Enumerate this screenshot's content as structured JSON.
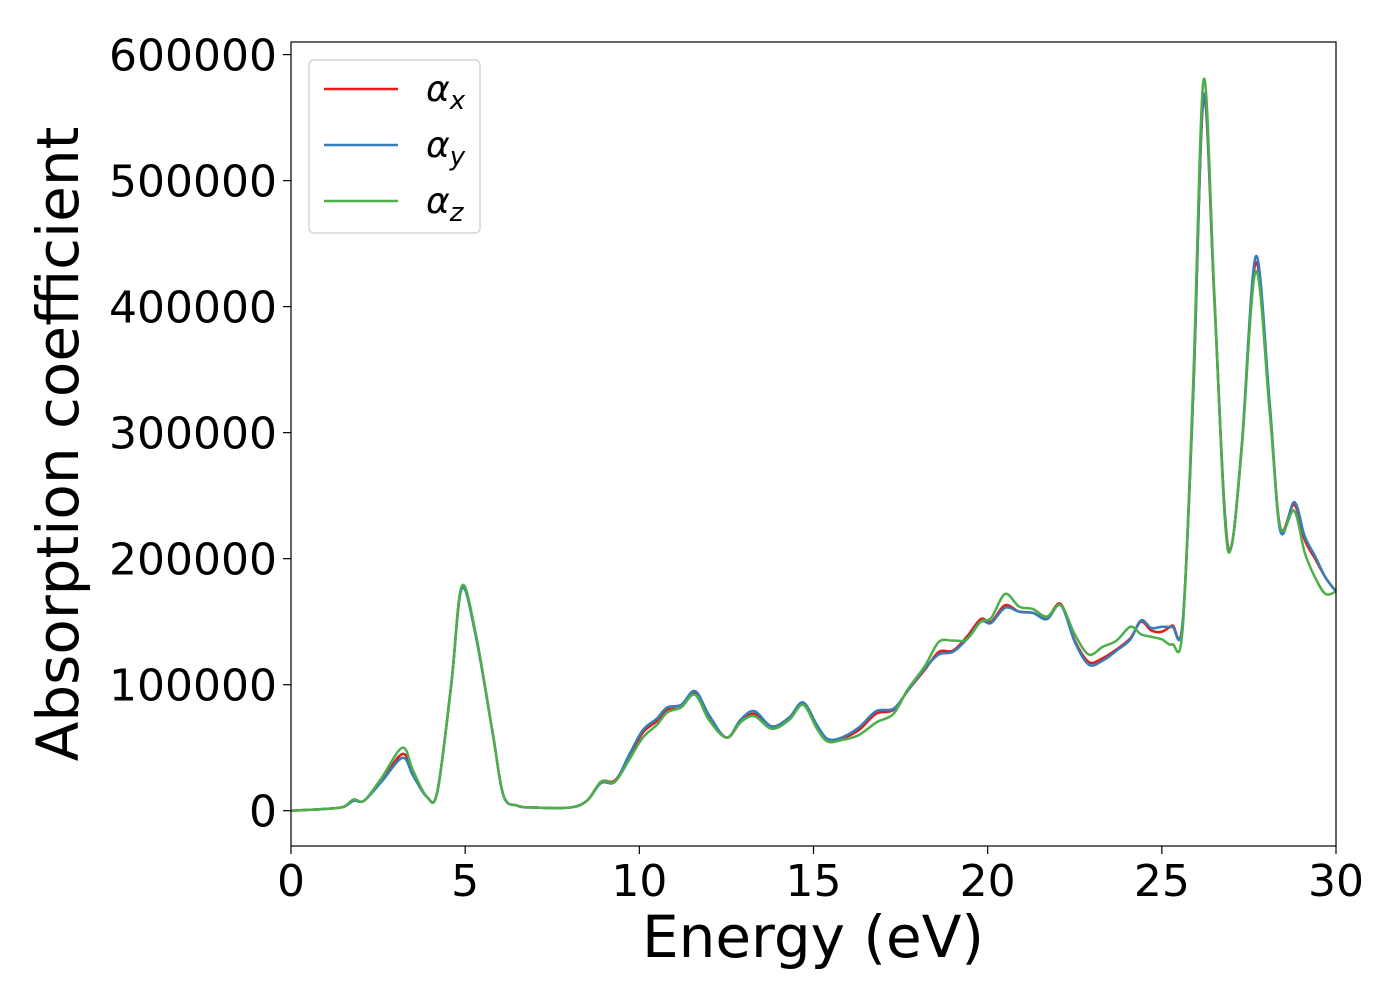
{
  "chart_data": {
    "type": "line",
    "xlabel": "Energy (eV)",
    "ylabel": "Absorption coefficient",
    "xlim": [
      0,
      30
    ],
    "ylim": [
      -28000,
      610000
    ],
    "x_ticks": [
      0,
      5,
      10,
      15,
      20,
      25,
      30
    ],
    "y_ticks": [
      0,
      100000,
      200000,
      300000,
      400000,
      500000,
      600000
    ],
    "grid": false,
    "legend_position": "top-left",
    "series": [
      {
        "name": "αx",
        "symbol": "α",
        "subscript": "x",
        "color": "#e41a1c",
        "points": [
          [
            0,
            0
          ],
          [
            1,
            1500
          ],
          [
            1.5,
            3000
          ],
          [
            1.8,
            8000
          ],
          [
            2.1,
            8000
          ],
          [
            2.6,
            24000
          ],
          [
            3.2,
            45000
          ],
          [
            3.5,
            30000
          ],
          [
            3.9,
            11000
          ],
          [
            4.2,
            15000
          ],
          [
            4.6,
            100000
          ],
          [
            4.9,
            177000
          ],
          [
            5.3,
            140000
          ],
          [
            5.8,
            60000
          ],
          [
            6.1,
            12000
          ],
          [
            6.5,
            4000
          ],
          [
            7,
            2500
          ],
          [
            8,
            2500
          ],
          [
            8.5,
            8000
          ],
          [
            8.9,
            23000
          ],
          [
            9.3,
            24000
          ],
          [
            9.7,
            42000
          ],
          [
            10.1,
            62000
          ],
          [
            10.5,
            71000
          ],
          [
            10.8,
            80000
          ],
          [
            11.2,
            82000
          ],
          [
            11.6,
            94000
          ],
          [
            12,
            75000
          ],
          [
            12.5,
            58000
          ],
          [
            12.9,
            70000
          ],
          [
            13.3,
            77000
          ],
          [
            13.8,
            66000
          ],
          [
            14.3,
            73000
          ],
          [
            14.7,
            85000
          ],
          [
            15.1,
            67000
          ],
          [
            15.4,
            55000
          ],
          [
            15.8,
            57000
          ],
          [
            16.3,
            64000
          ],
          [
            16.8,
            77000
          ],
          [
            17.3,
            80000
          ],
          [
            17.7,
            95000
          ],
          [
            18.2,
            112000
          ],
          [
            18.6,
            126000
          ],
          [
            19,
            127000
          ],
          [
            19.4,
            138000
          ],
          [
            19.8,
            152000
          ],
          [
            20.1,
            150000
          ],
          [
            20.5,
            163000
          ],
          [
            20.9,
            158000
          ],
          [
            21.3,
            157000
          ],
          [
            21.7,
            153000
          ],
          [
            22.1,
            164000
          ],
          [
            22.5,
            135000
          ],
          [
            22.9,
            118000
          ],
          [
            23.3,
            121000
          ],
          [
            23.7,
            128000
          ],
          [
            24.1,
            137000
          ],
          [
            24.4,
            150000
          ],
          [
            24.7,
            143000
          ],
          [
            25,
            142000
          ],
          [
            25.3,
            147000
          ],
          [
            25.6,
            150000
          ],
          [
            25.9,
            330000
          ],
          [
            26.2,
            565000
          ],
          [
            26.5,
            410000
          ],
          [
            26.8,
            240000
          ],
          [
            27,
            210000
          ],
          [
            27.3,
            290000
          ],
          [
            27.7,
            435000
          ],
          [
            28.1,
            320000
          ],
          [
            28.4,
            225000
          ],
          [
            28.8,
            243000
          ],
          [
            29.1,
            215000
          ],
          [
            29.4,
            200000
          ],
          [
            29.7,
            185000
          ],
          [
            30,
            174000
          ]
        ]
      },
      {
        "name": "αy",
        "symbol": "α",
        "subscript": "y",
        "color": "#377eb8",
        "points": [
          [
            0,
            0
          ],
          [
            1,
            1500
          ],
          [
            1.5,
            3000
          ],
          [
            1.8,
            8000
          ],
          [
            2.1,
            8000
          ],
          [
            2.6,
            23000
          ],
          [
            3.2,
            42000
          ],
          [
            3.5,
            28000
          ],
          [
            3.9,
            11000
          ],
          [
            4.2,
            15000
          ],
          [
            4.6,
            100000
          ],
          [
            4.9,
            176000
          ],
          [
            5.3,
            139000
          ],
          [
            5.8,
            60000
          ],
          [
            6.1,
            12000
          ],
          [
            6.5,
            4000
          ],
          [
            7,
            2500
          ],
          [
            8,
            2500
          ],
          [
            8.5,
            8000
          ],
          [
            8.9,
            22000
          ],
          [
            9.3,
            23000
          ],
          [
            9.7,
            44000
          ],
          [
            10.1,
            64000
          ],
          [
            10.5,
            73000
          ],
          [
            10.8,
            82000
          ],
          [
            11.2,
            84000
          ],
          [
            11.6,
            95000
          ],
          [
            12,
            76000
          ],
          [
            12.5,
            58000
          ],
          [
            12.9,
            72000
          ],
          [
            13.3,
            79000
          ],
          [
            13.8,
            67000
          ],
          [
            14.3,
            74000
          ],
          [
            14.7,
            86000
          ],
          [
            15.1,
            68000
          ],
          [
            15.4,
            57000
          ],
          [
            15.8,
            58000
          ],
          [
            16.3,
            66000
          ],
          [
            16.8,
            79000
          ],
          [
            17.3,
            81000
          ],
          [
            17.7,
            95000
          ],
          [
            18.2,
            113000
          ],
          [
            18.6,
            124000
          ],
          [
            19,
            126000
          ],
          [
            19.4,
            136000
          ],
          [
            19.8,
            150000
          ],
          [
            20.1,
            149000
          ],
          [
            20.5,
            161000
          ],
          [
            20.9,
            158000
          ],
          [
            21.3,
            157000
          ],
          [
            21.7,
            152000
          ],
          [
            22.1,
            163000
          ],
          [
            22.5,
            134000
          ],
          [
            22.9,
            116000
          ],
          [
            23.3,
            119000
          ],
          [
            23.7,
            127000
          ],
          [
            24.1,
            136000
          ],
          [
            24.4,
            151000
          ],
          [
            24.7,
            145000
          ],
          [
            25,
            146000
          ],
          [
            25.3,
            146000
          ],
          [
            25.6,
            150000
          ],
          [
            25.9,
            330000
          ],
          [
            26.2,
            568000
          ],
          [
            26.5,
            412000
          ],
          [
            26.8,
            238000
          ],
          [
            27,
            210000
          ],
          [
            27.3,
            292000
          ],
          [
            27.7,
            440000
          ],
          [
            28.1,
            322000
          ],
          [
            28.4,
            222000
          ],
          [
            28.8,
            245000
          ],
          [
            29.1,
            218000
          ],
          [
            29.4,
            202000
          ],
          [
            29.7,
            185000
          ],
          [
            30,
            174000
          ]
        ]
      },
      {
        "name": "αz",
        "symbol": "α",
        "subscript": "z",
        "color": "#4daf4a",
        "points": [
          [
            0,
            0
          ],
          [
            1,
            1500
          ],
          [
            1.5,
            3000
          ],
          [
            1.8,
            9000
          ],
          [
            2.1,
            8000
          ],
          [
            2.6,
            26000
          ],
          [
            3.2,
            50000
          ],
          [
            3.5,
            32000
          ],
          [
            3.9,
            11000
          ],
          [
            4.2,
            15000
          ],
          [
            4.6,
            100000
          ],
          [
            4.9,
            178000
          ],
          [
            5.3,
            141000
          ],
          [
            5.8,
            60000
          ],
          [
            6.1,
            12000
          ],
          [
            6.5,
            4000
          ],
          [
            7,
            2500
          ],
          [
            8,
            2500
          ],
          [
            8.5,
            8000
          ],
          [
            8.9,
            23000
          ],
          [
            9.3,
            23000
          ],
          [
            9.7,
            40000
          ],
          [
            10.1,
            58000
          ],
          [
            10.5,
            68000
          ],
          [
            10.8,
            78000
          ],
          [
            11.2,
            82000
          ],
          [
            11.6,
            92000
          ],
          [
            12,
            72000
          ],
          [
            12.5,
            58000
          ],
          [
            12.9,
            70000
          ],
          [
            13.3,
            75000
          ],
          [
            13.8,
            65000
          ],
          [
            14.3,
            72000
          ],
          [
            14.7,
            84000
          ],
          [
            15.1,
            65000
          ],
          [
            15.4,
            55000
          ],
          [
            15.8,
            56000
          ],
          [
            16.3,
            60000
          ],
          [
            16.8,
            70000
          ],
          [
            17.3,
            77000
          ],
          [
            17.7,
            96000
          ],
          [
            18.2,
            115000
          ],
          [
            18.6,
            134000
          ],
          [
            19,
            135000
          ],
          [
            19.4,
            136000
          ],
          [
            19.8,
            150000
          ],
          [
            20.1,
            153000
          ],
          [
            20.5,
            172000
          ],
          [
            20.9,
            162000
          ],
          [
            21.3,
            160000
          ],
          [
            21.7,
            154000
          ],
          [
            22.1,
            163000
          ],
          [
            22.5,
            140000
          ],
          [
            22.9,
            124000
          ],
          [
            23.3,
            130000
          ],
          [
            23.7,
            135000
          ],
          [
            24.1,
            146000
          ],
          [
            24.4,
            140000
          ],
          [
            24.7,
            138000
          ],
          [
            25,
            136000
          ],
          [
            25.3,
            132000
          ],
          [
            25.6,
            145000
          ],
          [
            25.9,
            340000
          ],
          [
            26.2,
            580000
          ],
          [
            26.5,
            415000
          ],
          [
            26.8,
            235000
          ],
          [
            27,
            210000
          ],
          [
            27.3,
            290000
          ],
          [
            27.7,
            428000
          ],
          [
            28.1,
            315000
          ],
          [
            28.4,
            225000
          ],
          [
            28.8,
            238000
          ],
          [
            29.1,
            205000
          ],
          [
            29.4,
            185000
          ],
          [
            29.7,
            172000
          ],
          [
            30,
            174000
          ]
        ]
      }
    ]
  }
}
